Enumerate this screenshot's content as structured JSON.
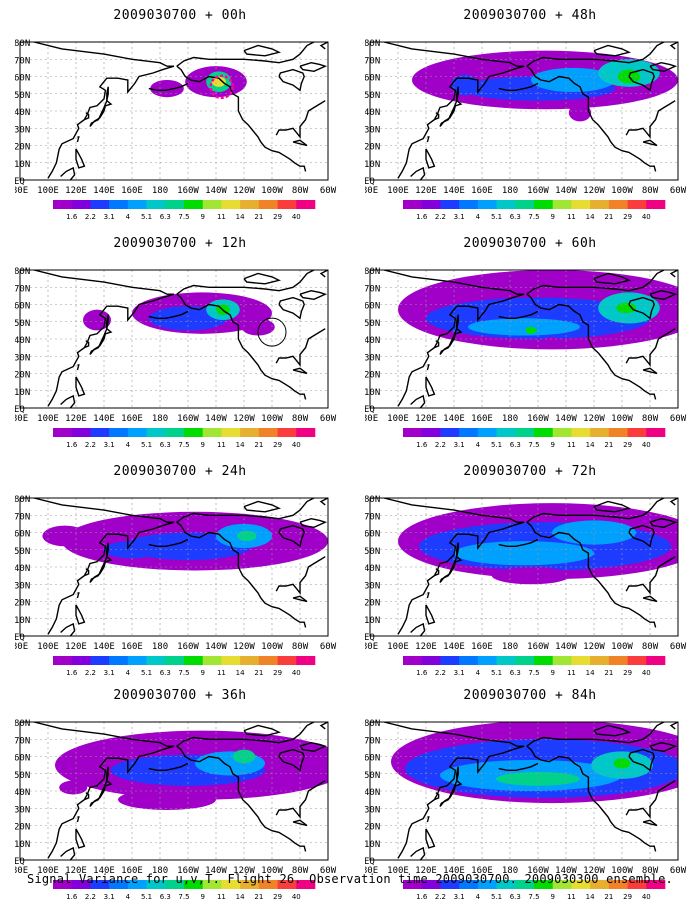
{
  "figure": {
    "caption": "Signal Variance for u,v,T. Flight 26. Observation time 2009030700. 2009030300 ensemble."
  },
  "colors": {
    "levels": [
      "#a000c8",
      "#8200dc",
      "#1e3cff",
      "#0078ff",
      "#00a0ff",
      "#00c8c8",
      "#00d28c",
      "#00dc00",
      "#a0e632",
      "#e6dc32",
      "#e6af2d",
      "#f08228",
      "#fa3c3c",
      "#f00082"
    ],
    "coast": "#000000",
    "grid": "#999999",
    "target_circle": "#ff00aa"
  },
  "chart_data": {
    "type": "heatmap",
    "lat_ticks": [
      "80N",
      "70N",
      "60N",
      "50N",
      "40N",
      "30N",
      "20N",
      "10N",
      "EQ"
    ],
    "lon_ticks": [
      "80E",
      "100E",
      "120E",
      "140E",
      "160E",
      "180",
      "160W",
      "140W",
      "120W",
      "100W",
      "80W",
      "60W"
    ],
    "colorbar_labels": [
      "1.6",
      "2.2",
      "3.1",
      "4",
      "5.1",
      "6.3",
      "7.5",
      "9",
      "11",
      "14",
      "21",
      "29",
      "40"
    ],
    "panels": [
      {
        "title": "2009030700 + 00h",
        "lead_hours": 0,
        "marker": "dashed-circle",
        "blobs": [
          {
            "lon": -140,
            "lat": 57,
            "rx": 22,
            "ry": 9,
            "level": 0
          },
          {
            "lon": -138,
            "lat": 57,
            "rx": 9,
            "ry": 6,
            "level": 6
          },
          {
            "lon": -138,
            "lat": 57,
            "rx": 5,
            "ry": 3,
            "level": 9
          },
          {
            "lon": -175,
            "lat": 53,
            "rx": 12,
            "ry": 5,
            "level": 0
          }
        ]
      },
      {
        "title": "2009030700 + 48h",
        "lead_hours": 48,
        "marker": null,
        "blobs": [
          {
            "lon": -155,
            "lat": 58,
            "rx": 95,
            "ry": 17,
            "level": 0
          },
          {
            "lon": -160,
            "lat": 53,
            "rx": 55,
            "ry": 7,
            "level": 2
          },
          {
            "lon": -135,
            "lat": 58,
            "rx": 30,
            "ry": 7,
            "level": 4
          },
          {
            "lon": -95,
            "lat": 62,
            "rx": 22,
            "ry": 8,
            "level": 5
          },
          {
            "lon": -95,
            "lat": 60,
            "rx": 8,
            "ry": 4,
            "level": 7
          },
          {
            "lon": 148,
            "lat": 55,
            "rx": 10,
            "ry": 6,
            "level": 2
          },
          {
            "lon": -130,
            "lat": 39,
            "rx": 8,
            "ry": 5,
            "level": 0
          }
        ]
      },
      {
        "title": "2009030700 + 12h",
        "lead_hours": 12,
        "marker": "circle",
        "blobs": [
          {
            "lon": -150,
            "lat": 55,
            "rx": 50,
            "ry": 12,
            "level": 0
          },
          {
            "lon": -160,
            "lat": 52,
            "rx": 28,
            "ry": 7,
            "level": 2
          },
          {
            "lon": -135,
            "lat": 57,
            "rx": 12,
            "ry": 6,
            "level": 5
          },
          {
            "lon": -135,
            "lat": 57,
            "rx": 5,
            "ry": 3,
            "level": 7
          },
          {
            "lon": -110,
            "lat": 47,
            "rx": 12,
            "ry": 5,
            "level": 0
          },
          {
            "lon": 135,
            "lat": 51,
            "rx": 10,
            "ry": 6,
            "level": 0
          }
        ]
      },
      {
        "title": "2009030700 + 60h",
        "lead_hours": 60,
        "marker": null,
        "blobs": [
          {
            "lon": -150,
            "lat": 57,
            "rx": 110,
            "ry": 23,
            "level": 0
          },
          {
            "lon": -160,
            "lat": 52,
            "rx": 80,
            "ry": 12,
            "level": 2
          },
          {
            "lon": -170,
            "lat": 47,
            "rx": 40,
            "ry": 5,
            "level": 4
          },
          {
            "lon": -165,
            "lat": 45,
            "rx": 4,
            "ry": 2,
            "level": 7
          },
          {
            "lon": -95,
            "lat": 58,
            "rx": 22,
            "ry": 9,
            "level": 5
          },
          {
            "lon": -97,
            "lat": 58,
            "rx": 7,
            "ry": 3,
            "level": 7
          },
          {
            "lon": -150,
            "lat": 38,
            "rx": 8,
            "ry": 3,
            "level": 0
          }
        ]
      },
      {
        "title": "2009030700 + 24h",
        "lead_hours": 24,
        "marker": null,
        "blobs": [
          {
            "lon": -155,
            "lat": 55,
            "rx": 95,
            "ry": 17,
            "level": 0
          },
          {
            "lon": -160,
            "lat": 52,
            "rx": 45,
            "ry": 8,
            "level": 2
          },
          {
            "lon": -120,
            "lat": 58,
            "rx": 20,
            "ry": 7,
            "level": 4
          },
          {
            "lon": -118,
            "lat": 58,
            "rx": 7,
            "ry": 3,
            "level": 6
          },
          {
            "lon": 160,
            "lat": 50,
            "rx": 20,
            "ry": 5,
            "level": 2
          },
          {
            "lon": 112,
            "lat": 58,
            "rx": 16,
            "ry": 6,
            "level": 0
          }
        ]
      },
      {
        "title": "2009030700 + 72h",
        "lead_hours": 72,
        "marker": null,
        "blobs": [
          {
            "lon": -150,
            "lat": 55,
            "rx": 110,
            "ry": 22,
            "level": 0
          },
          {
            "lon": -155,
            "lat": 52,
            "rx": 90,
            "ry": 14,
            "level": 2
          },
          {
            "lon": -170,
            "lat": 48,
            "rx": 50,
            "ry": 7,
            "level": 4
          },
          {
            "lon": -120,
            "lat": 60,
            "rx": 30,
            "ry": 7,
            "level": 4
          },
          {
            "lon": -165,
            "lat": 35,
            "rx": 28,
            "ry": 5,
            "level": 0
          }
        ]
      },
      {
        "title": "2009030700 + 36h",
        "lead_hours": 36,
        "marker": null,
        "blobs": [
          {
            "lon": -150,
            "lat": 55,
            "rx": 105,
            "ry": 20,
            "level": 0
          },
          {
            "lon": -160,
            "lat": 52,
            "rx": 55,
            "ry": 9,
            "level": 2
          },
          {
            "lon": -130,
            "lat": 56,
            "rx": 25,
            "ry": 7,
            "level": 4
          },
          {
            "lon": -120,
            "lat": 60,
            "rx": 8,
            "ry": 4,
            "level": 6
          },
          {
            "lon": -175,
            "lat": 35,
            "rx": 35,
            "ry": 6,
            "level": 0
          },
          {
            "lon": 118,
            "lat": 42,
            "rx": 10,
            "ry": 4,
            "level": 0
          }
        ]
      },
      {
        "title": "2009030700 + 84h",
        "lead_hours": 84,
        "marker": null,
        "blobs": [
          {
            "lon": -150,
            "lat": 57,
            "rx": 115,
            "ry": 24,
            "level": 0
          },
          {
            "lon": -155,
            "lat": 53,
            "rx": 100,
            "ry": 17,
            "level": 2
          },
          {
            "lon": -165,
            "lat": 49,
            "rx": 65,
            "ry": 9,
            "level": 4
          },
          {
            "lon": -160,
            "lat": 47,
            "rx": 30,
            "ry": 4,
            "level": 6
          },
          {
            "lon": -100,
            "lat": 55,
            "rx": 22,
            "ry": 8,
            "level": 5
          },
          {
            "lon": -100,
            "lat": 56,
            "rx": 6,
            "ry": 3,
            "level": 7
          }
        ]
      }
    ]
  }
}
